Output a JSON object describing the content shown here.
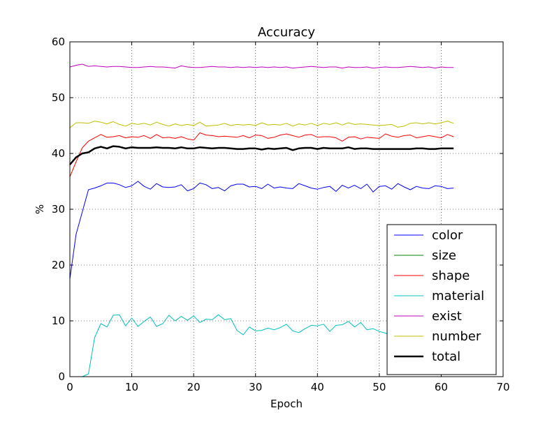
{
  "chart_data": {
    "type": "line",
    "title": "Accuracy",
    "xlabel": "Epoch",
    "ylabel": "%",
    "xlim": [
      0,
      70
    ],
    "ylim": [
      0,
      60
    ],
    "xticks": [
      0,
      10,
      20,
      30,
      40,
      50,
      60,
      70
    ],
    "yticks": [
      0,
      10,
      20,
      30,
      40,
      50,
      60
    ],
    "grid": true,
    "legend_position": "lower-right",
    "colors": {
      "color": "#0000ff",
      "size": "#008000",
      "shape": "#ff0000",
      "material": "#00bfbf",
      "exist": "#bf00bf",
      "number": "#bfbf00",
      "total": "#000000"
    },
    "series": [
      {
        "name": "color",
        "values": [
          17.5,
          25.5,
          29.5,
          33.5,
          33.8,
          34.2,
          34.7,
          34.7,
          34.4,
          33.9,
          34.2,
          35.0,
          34.1,
          33.6,
          34.6,
          34.0,
          33.9,
          34.0,
          34.4,
          33.3,
          33.7,
          34.7,
          34.4,
          33.7,
          33.9,
          33.3,
          34.2,
          34.5,
          34.5,
          34.0,
          34.1,
          33.7,
          34.5,
          33.8,
          34.0,
          33.8,
          33.7,
          34.6,
          34.2,
          33.8,
          33.6,
          33.9,
          34.1,
          33.2,
          34.3,
          33.8,
          34.3,
          33.7,
          34.5,
          33.1,
          34.1,
          34.2,
          33.6,
          34.6,
          34.0,
          33.5,
          34.1,
          33.8,
          33.7,
          34.2,
          34.1,
          33.7,
          33.8
        ]
      },
      {
        "name": "size",
        "values": [
          0,
          0,
          0,
          0,
          0,
          0,
          0,
          0,
          0,
          0,
          0,
          0,
          0,
          0,
          0,
          0,
          0,
          0,
          0,
          0,
          0,
          0,
          0,
          0,
          0,
          0,
          0,
          0,
          0,
          0,
          0,
          0,
          0,
          0,
          0,
          0,
          0,
          0,
          0,
          0,
          0,
          0,
          0,
          0,
          0,
          0,
          0,
          0,
          0,
          0,
          0,
          0,
          0,
          0,
          0,
          0,
          0,
          0,
          0,
          0,
          0,
          0,
          0
        ]
      },
      {
        "name": "shape",
        "values": [
          35.8,
          38.5,
          41.0,
          42.2,
          42.8,
          43.4,
          42.9,
          43.0,
          43.2,
          42.8,
          43.0,
          42.9,
          43.2,
          42.7,
          43.4,
          42.8,
          42.9,
          42.7,
          43.0,
          42.6,
          42.4,
          43.7,
          43.3,
          43.2,
          43.0,
          43.1,
          43.0,
          42.9,
          43.2,
          42.8,
          43.3,
          43.2,
          42.7,
          42.9,
          43.3,
          43.5,
          43.2,
          42.9,
          43.3,
          43.4,
          42.9,
          43.0,
          43.0,
          42.8,
          42.2,
          42.9,
          43.0,
          42.6,
          42.9,
          42.8,
          42.7,
          43.5,
          43.1,
          42.9,
          43.2,
          43.3,
          42.8,
          43.0,
          43.2,
          43.0,
          42.8,
          43.4,
          43.0
        ]
      },
      {
        "name": "material",
        "values": [
          0,
          0,
          0,
          0.5,
          7.0,
          9.5,
          8.9,
          11.0,
          11.1,
          9.1,
          10.5,
          9.0,
          9.9,
          10.7,
          9.0,
          9.5,
          11.0,
          10.0,
          10.8,
          10.1,
          10.9,
          9.7,
          10.3,
          10.2,
          11.1,
          10.2,
          10.4,
          8.3,
          7.5,
          8.9,
          8.2,
          8.3,
          8.7,
          8.4,
          8.8,
          9.4,
          8.2,
          7.9,
          8.6,
          9.2,
          9.1,
          9.4,
          8.1,
          9.2,
          9.3,
          9.9,
          8.9,
          9.7,
          8.4,
          8.6,
          8.1,
          7.8,
          7.4,
          7.0,
          6.9,
          6.8,
          6.6,
          6.8,
          6.7,
          6.6,
          6.7,
          6.6,
          6.5
        ]
      },
      {
        "name": "exist",
        "values": [
          55.5,
          55.8,
          56.0,
          55.6,
          55.7,
          55.6,
          55.5,
          55.6,
          55.6,
          55.5,
          55.4,
          55.4,
          55.5,
          55.6,
          55.5,
          55.5,
          55.4,
          55.3,
          55.7,
          55.5,
          55.4,
          55.4,
          55.5,
          55.6,
          55.5,
          55.5,
          55.4,
          55.5,
          55.4,
          55.5,
          55.4,
          55.5,
          55.4,
          55.5,
          55.4,
          55.5,
          55.3,
          55.4,
          55.5,
          55.6,
          55.5,
          55.4,
          55.5,
          55.5,
          55.3,
          55.5,
          55.4,
          55.4,
          55.5,
          55.3,
          55.4,
          55.5,
          55.4,
          55.4,
          55.5,
          55.6,
          55.5,
          55.4,
          55.5,
          55.3,
          55.5,
          55.4,
          55.4
        ]
      },
      {
        "name": "number",
        "values": [
          44.6,
          45.5,
          45.5,
          45.4,
          45.8,
          45.6,
          45.3,
          45.7,
          45.2,
          44.9,
          45.4,
          45.2,
          45.4,
          45.1,
          45.6,
          45.2,
          44.9,
          45.3,
          45.0,
          45.2,
          45.0,
          45.6,
          44.9,
          45.0,
          45.1,
          45.4,
          45.0,
          45.2,
          45.1,
          45.2,
          45.0,
          45.5,
          45.1,
          45.2,
          45.1,
          45.4,
          44.9,
          45.3,
          45.1,
          45.4,
          45.0,
          45.4,
          45.2,
          45.5,
          45.1,
          45.5,
          45.2,
          45.3,
          45.2,
          45.1,
          45.0,
          45.1,
          45.2,
          44.7,
          44.9,
          45.4,
          45.5,
          45.3,
          45.5,
          45.3,
          45.5,
          45.8,
          45.4
        ]
      },
      {
        "name": "total",
        "values": [
          38.0,
          39.3,
          40.0,
          40.2,
          40.9,
          41.2,
          40.9,
          41.3,
          41.2,
          40.9,
          41.1,
          41.0,
          41.0,
          41.0,
          41.1,
          41.0,
          41.0,
          40.9,
          41.1,
          40.9,
          40.9,
          41.1,
          41.0,
          40.9,
          41.0,
          41.0,
          40.9,
          40.8,
          40.8,
          40.9,
          40.9,
          40.7,
          40.9,
          40.8,
          40.9,
          41.0,
          40.6,
          40.9,
          41.0,
          41.0,
          40.8,
          41.0,
          40.9,
          40.9,
          40.9,
          41.1,
          40.8,
          40.9,
          40.9,
          40.8,
          40.8,
          40.8,
          40.8,
          40.8,
          40.8,
          40.8,
          40.9,
          40.9,
          40.8,
          40.8,
          40.9,
          40.9,
          40.9
        ]
      }
    ]
  }
}
